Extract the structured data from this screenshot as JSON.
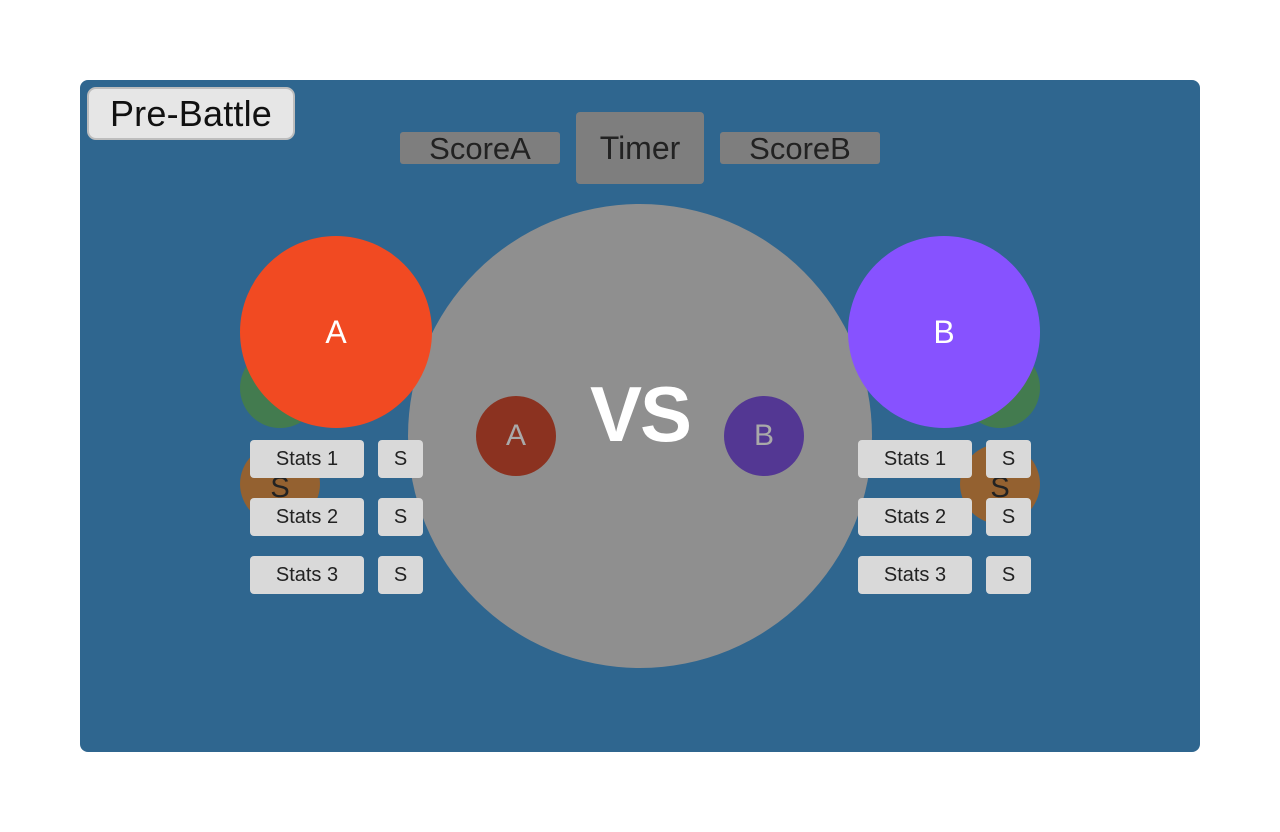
{
  "phase": {
    "label": "Pre-Battle"
  },
  "scoreboard": {
    "score_a": "ScoreA",
    "timer": "Timer",
    "score_b": "ScoreB"
  },
  "center": {
    "vs_label": "VS",
    "small_a": "A",
    "small_b": "B"
  },
  "players": {
    "a": {
      "label": "A",
      "color": "#f14a22",
      "stats": [
        {
          "label": "Stats 1",
          "score": "S"
        },
        {
          "label": "Stats 2",
          "score": "S"
        },
        {
          "label": "Stats 3",
          "score": "S"
        }
      ],
      "ghost_label": "S"
    },
    "b": {
      "label": "B",
      "color": "#8752ff",
      "stats": [
        {
          "label": "Stats 1",
          "score": "S"
        },
        {
          "label": "Stats 2",
          "score": "S"
        },
        {
          "label": "Stats 3",
          "score": "S"
        }
      ],
      "ghost_label": "S"
    }
  },
  "colors": {
    "stage": "#2f668f",
    "arena": "#8f8f8f",
    "score_box": "#7e7e7e",
    "button": "#d9d9d9",
    "ghost_green": "#437b4f",
    "ghost_orange": "#946130"
  }
}
